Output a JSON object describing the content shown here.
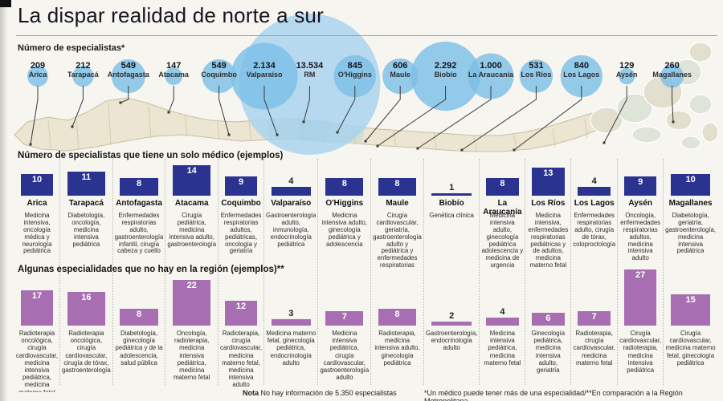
{
  "title": "La dispar realidad de norte a sur",
  "footer": {
    "nota_label": "Nota",
    "nota_text": "No hay información de 5.350 especialistas",
    "footnote": "*Un médico puede tener más de una especialidad/**En comparación a la Región Metropolitana"
  },
  "colors": {
    "bar_blue": "#2b3390",
    "bar_purple": "#a76fb1",
    "bubble": "#7dbfe7",
    "bubble_large": "#a7d3ef",
    "map_land": "#ebe5d1",
    "map_border": "#c9bfa0",
    "leader_line": "#3a3a3a"
  },
  "chart_data": [
    {
      "type": "bubble",
      "title": "Número de especialistas*",
      "categories": [
        "Arica",
        "Tarapacá",
        "Antofagasta",
        "Atacama",
        "Coquimbo",
        "Valparaíso",
        "RM",
        "O'Higgins",
        "Maule",
        "Biobío",
        "La Araucanía",
        "Los Ríos",
        "Los Lagos",
        "Aysén",
        "Magallanes"
      ],
      "values": [
        209,
        212,
        549,
        147,
        549,
        2134,
        13534,
        845,
        606,
        2292,
        1000,
        531,
        840,
        129,
        260
      ],
      "value_labels": [
        "209",
        "212",
        "549",
        "147",
        "549",
        "2.134",
        "13.534",
        "845",
        "606",
        "2.292",
        "1.000",
        "531",
        "840",
        "129",
        "260"
      ]
    },
    {
      "type": "bar",
      "title": "Número de specialistas que tiene un solo médico (ejemplos)",
      "categories": [
        "Arica",
        "Tarapacá",
        "Antofagasta",
        "Atacama",
        "Coquimbo",
        "Valparaíso",
        "O'Higgins",
        "Maule",
        "Biobío",
        "La Araucanía",
        "Los Ríos",
        "Los Lagos",
        "Aysén",
        "Magallanes"
      ],
      "values": [
        10,
        11,
        8,
        14,
        9,
        4,
        8,
        8,
        1,
        8,
        13,
        4,
        9,
        10
      ],
      "descriptions": [
        "Medicina intensiva, oncología médica y neurología pediátrica",
        "Diabetología, oncología, medicina intensiva pediátrica",
        "Enfermedades respiratorias adulto, gastroenterología infantil, cirugía cabeza y cuello",
        "Cirugía pediátrica, medicina intensiva adulto, gastroenterología",
        "Enfermedades respiratorias adultos, pediátricas, oncología y geriatría",
        "Gastroenterología adulto, inmunología, endocrinología pediátrica",
        "Medicina intensiva adulto, ginecología pediátrica y adolescencia",
        "Cirugía cardiovascular, geriatría, gastroenterología adulto y pediátrica y enfermedades respiratorias pediátricas.",
        "Genética clínica",
        "Medicina intensiva adulto, ginecología pediátrica adolescencia y medicina de urgencia",
        "Medicina intensiva, enfermedades respiratorias pediátricas y de adultos, medicina materno fetal",
        "Enfermedades respiratorias adulto, cirugía de tórax, coloproctología",
        "Oncología, enfermedades respiratorias adultos, medicina intensiva adulto",
        "Diabetología, geriatría, gastroenterología, medicina intensiva pediátrica"
      ]
    },
    {
      "type": "bar",
      "title": "Algunas especialidades que no hay en la región (ejemplos)**",
      "categories": [
        "Arica",
        "Tarapacá",
        "Antofagasta",
        "Atacama",
        "Coquimbo",
        "Valparaíso",
        "O'Higgins",
        "Maule",
        "Biobío",
        "La Araucanía",
        "Los Ríos",
        "Los Lagos",
        "Aysén",
        "Magallanes"
      ],
      "values": [
        17,
        16,
        8,
        22,
        12,
        3,
        7,
        8,
        2,
        4,
        6,
        7,
        27,
        15
      ],
      "descriptions": [
        "Radioterapia oncológica, cirugía cardiovascular, medicina intensiva pediátrica, medicina materno fetal",
        "Radioterapia oncológica, cirugía cardiovascular, cirugía de tórax, gastroenterología",
        "Diabetología, ginecología pediátrica y de la adolescencia, salud pública",
        "Oncología, radioterapia, medicina intensiva pediátrica, medicina materno fetal",
        "Radioterapia, cirugía cardiovascular, medicina materno fetal, medicina intensiva adulto",
        "Medicina materno fetal, ginecología pediátrica, endocrinología adulto",
        "Medicina intensiva pediátrica, cirugía cardiovascular, gastroenterología adulto",
        "Radioterapia, medicina intensiva adulto, ginecología pediátrica",
        "Gastroenterología, endocrinología adulto",
        "Medicina intensiva pediátrica, medicina materno fetal",
        "Ginecología pediátrica, medicina intensiva adulto, geriatría",
        "Radioterapia, cirugía cardiovascular, medicina materno fetal",
        "Cirugía cardiovascular, radioterapia, medicina intensiva pediátrica",
        "Cirugía cardiovascular, medicina materno fetal, ginecología pediátrica"
      ]
    }
  ]
}
